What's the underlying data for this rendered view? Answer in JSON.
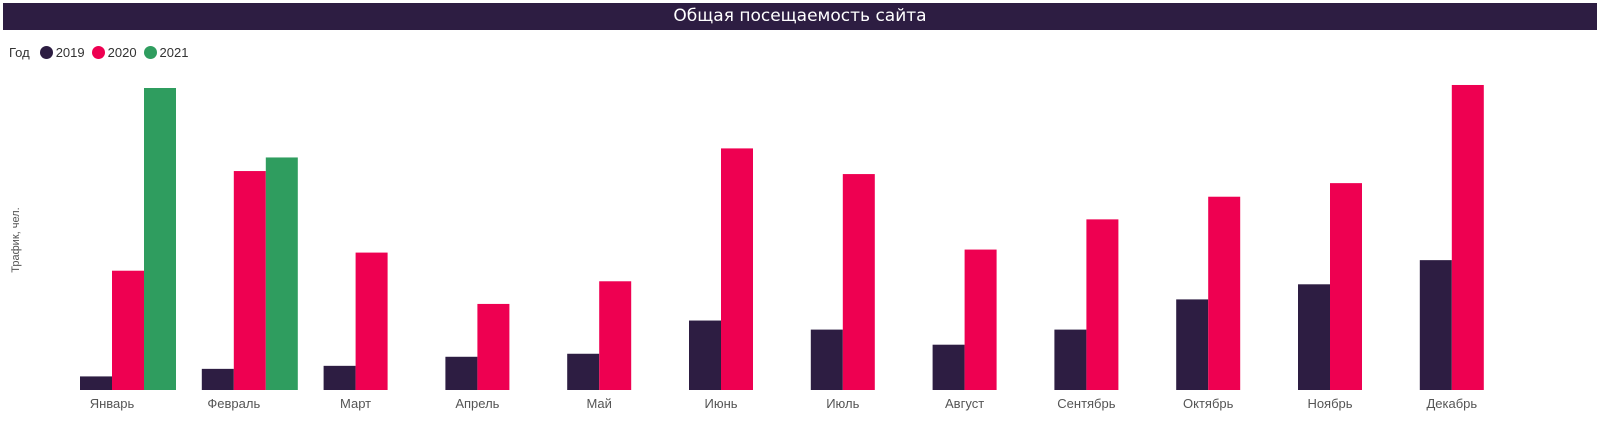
{
  "title": "Общая посещаемость сайта",
  "legend": {
    "title": "Год",
    "items": [
      {
        "label": "2019",
        "color": "#2d1d42"
      },
      {
        "label": "2020",
        "color": "#ee0051"
      },
      {
        "label": "2021",
        "color": "#2f9d5f"
      }
    ]
  },
  "chart_data": {
    "type": "bar",
    "title": "Общая посещаемость сайта",
    "xlabel": "",
    "ylabel": "Трафик, чел.",
    "legend_position": "top-left",
    "grid": false,
    "ylim": [
      0,
      100
    ],
    "categories": [
      "Январь",
      "Февраль",
      "Март",
      "Апрель",
      "Май",
      "Июнь",
      "Июль",
      "Август",
      "Сентябрь",
      "Октябрь",
      "Ноябрь",
      "Декабрь"
    ],
    "series": [
      {
        "name": "2019",
        "color": "#2d1d42",
        "values": [
          4.5,
          7,
          8,
          11,
          12,
          23,
          20,
          15,
          20,
          30,
          35,
          43
        ]
      },
      {
        "name": "2020",
        "color": "#ee0051",
        "values": [
          39.5,
          72.5,
          45.5,
          28.5,
          36,
          80,
          71.5,
          46.5,
          56.5,
          64,
          68.5,
          101
        ]
      },
      {
        "name": "2021",
        "color": "#2f9d5f",
        "values": [
          100,
          77,
          null,
          null,
          null,
          null,
          null,
          null,
          null,
          null,
          null,
          null
        ]
      }
    ]
  }
}
